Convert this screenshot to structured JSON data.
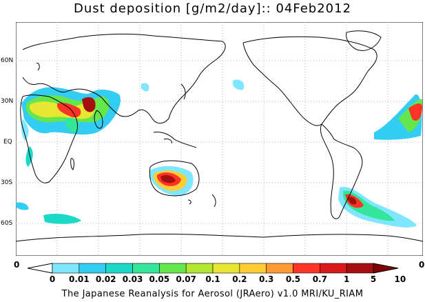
{
  "title": "Dust deposition [g/m2/day]:: 04Feb2012",
  "footer": "The Japanese Reanalysis for Aerosol (JRAero) v1.0 MRI/KU_RIAM",
  "map": {
    "projection": "plate-carree",
    "grid": "dotted",
    "lat_labels": [
      "60N",
      "30N",
      "EQ",
      "30S",
      "60S"
    ]
  },
  "colorbar": {
    "end_labels": [
      "0",
      "0"
    ],
    "tick_labels": [
      "0",
      "0.01",
      "0.02",
      "0.03",
      "0.05",
      "0.07",
      "0.1",
      "0.2",
      "0.3",
      "0.5",
      "0.7",
      "1",
      "5",
      "10"
    ],
    "colors": [
      "#ffffff",
      "#7fe6ff",
      "#33ccf2",
      "#1ad9c7",
      "#33e699",
      "#66e64d",
      "#b3e633",
      "#e6e633",
      "#ffcc33",
      "#ff9933",
      "#ff3326",
      "#d91a1a",
      "#a60f0f",
      "#800000"
    ]
  },
  "colors": {
    "coast": "#000000",
    "grid": "#b0b0b0",
    "frame": "#000000"
  }
}
